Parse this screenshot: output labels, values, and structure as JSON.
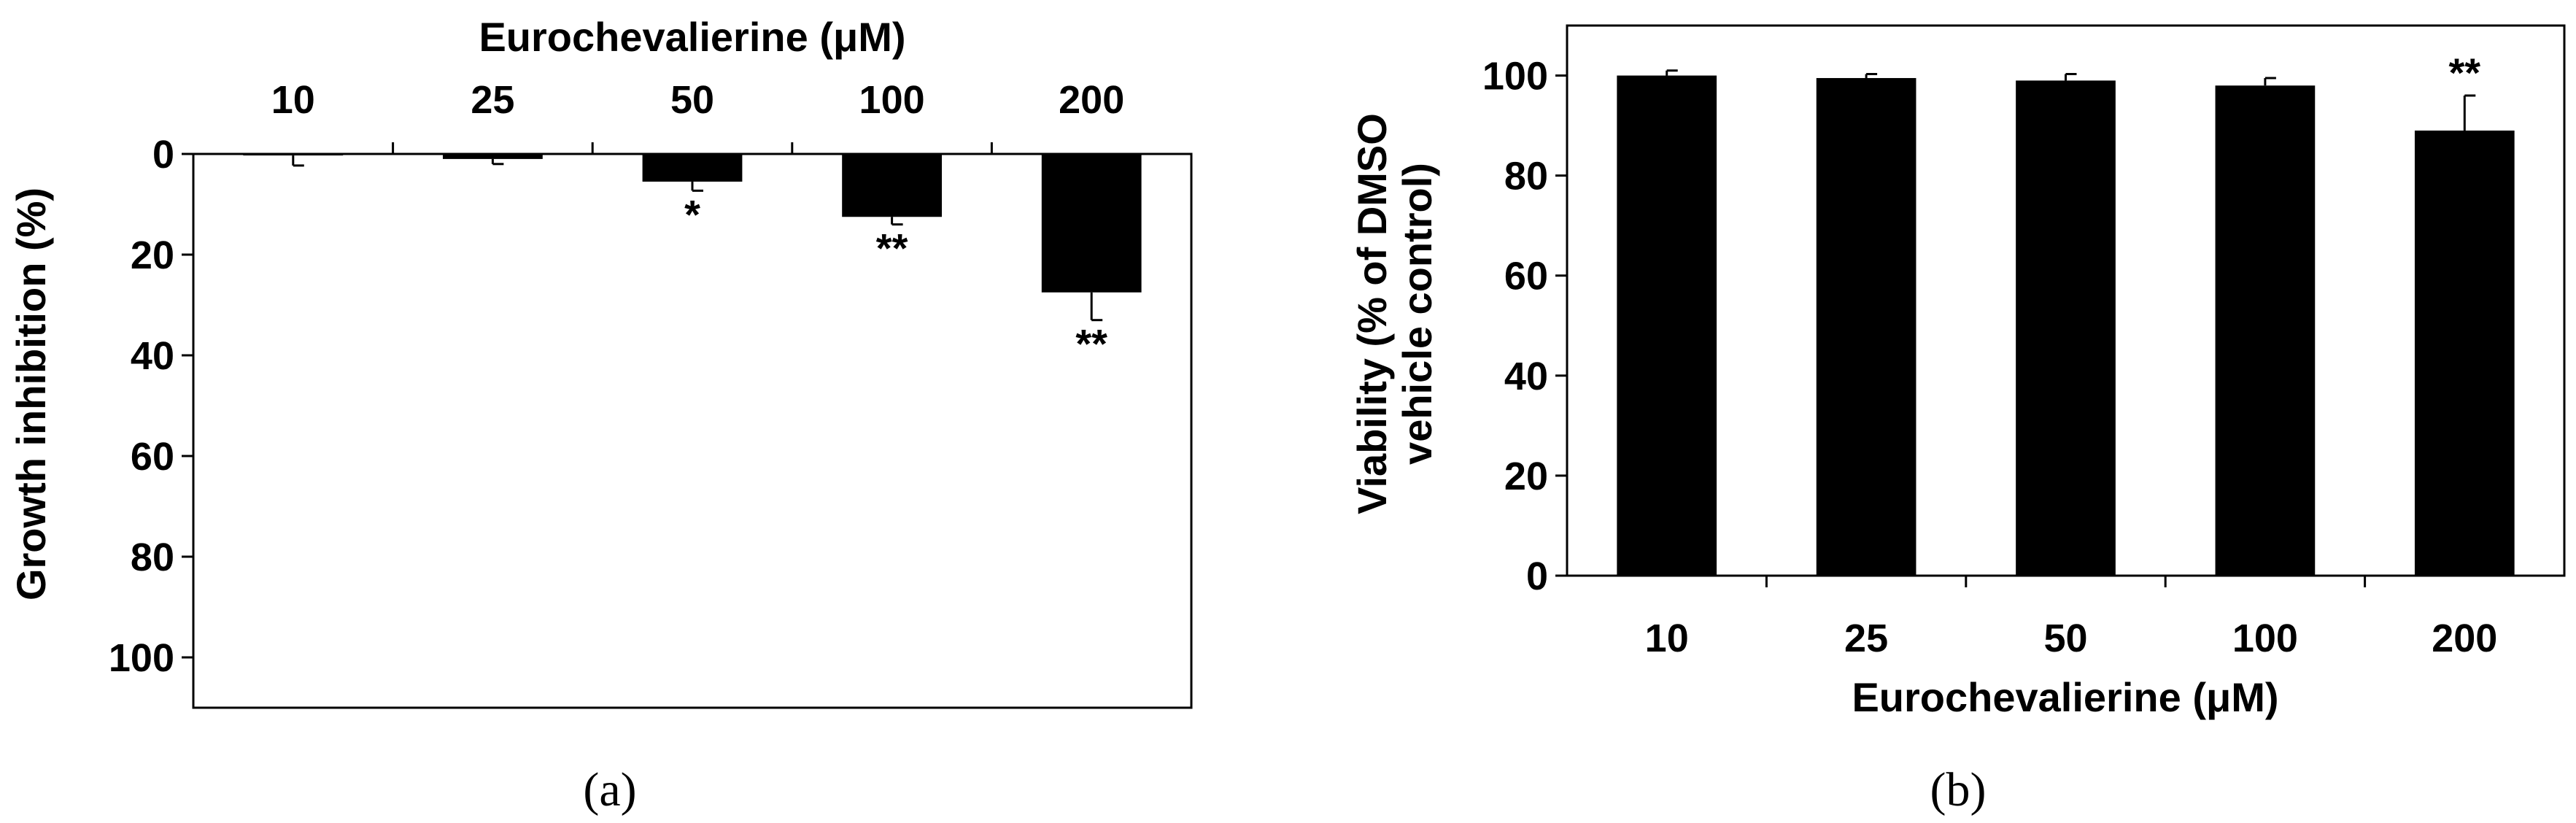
{
  "chart_data": [
    {
      "type": "bar",
      "panel_label": "(a)",
      "xlabel": "Eurochevalierine (μM)",
      "ylabel": "Growth inhibition (%)",
      "categories": [
        "10",
        "25",
        "50",
        "100",
        "200"
      ],
      "values": [
        0.3,
        1.0,
        5.5,
        12.5,
        27.5
      ],
      "errors": [
        2.0,
        1.0,
        1.8,
        1.5,
        5.5
      ],
      "significance": [
        "",
        "",
        "*",
        "**",
        "**"
      ],
      "yticks": [
        "0",
        "20",
        "40",
        "60",
        "80",
        "100"
      ],
      "ylim": [
        0,
        110
      ],
      "y_inverted": true,
      "x_axis_position": "top",
      "bar_color": "#000000",
      "grid": false
    },
    {
      "type": "bar",
      "panel_label": "(b)",
      "xlabel": "Eurochevalierine (μM)",
      "ylabel_lines": [
        "Viability (% of DMSO",
        "vehicle control)"
      ],
      "categories": [
        "10",
        "25",
        "50",
        "100",
        "200"
      ],
      "values": [
        100,
        99.5,
        99,
        98,
        89
      ],
      "errors": [
        1.0,
        0.8,
        1.3,
        1.5,
        7.0
      ],
      "significance": [
        "",
        "",
        "",
        "",
        "**"
      ],
      "yticks": [
        "0",
        "20",
        "40",
        "60",
        "80",
        "100"
      ],
      "ylim": [
        0,
        110
      ],
      "x_axis_position": "bottom",
      "bar_color": "#000000",
      "grid": false
    }
  ]
}
